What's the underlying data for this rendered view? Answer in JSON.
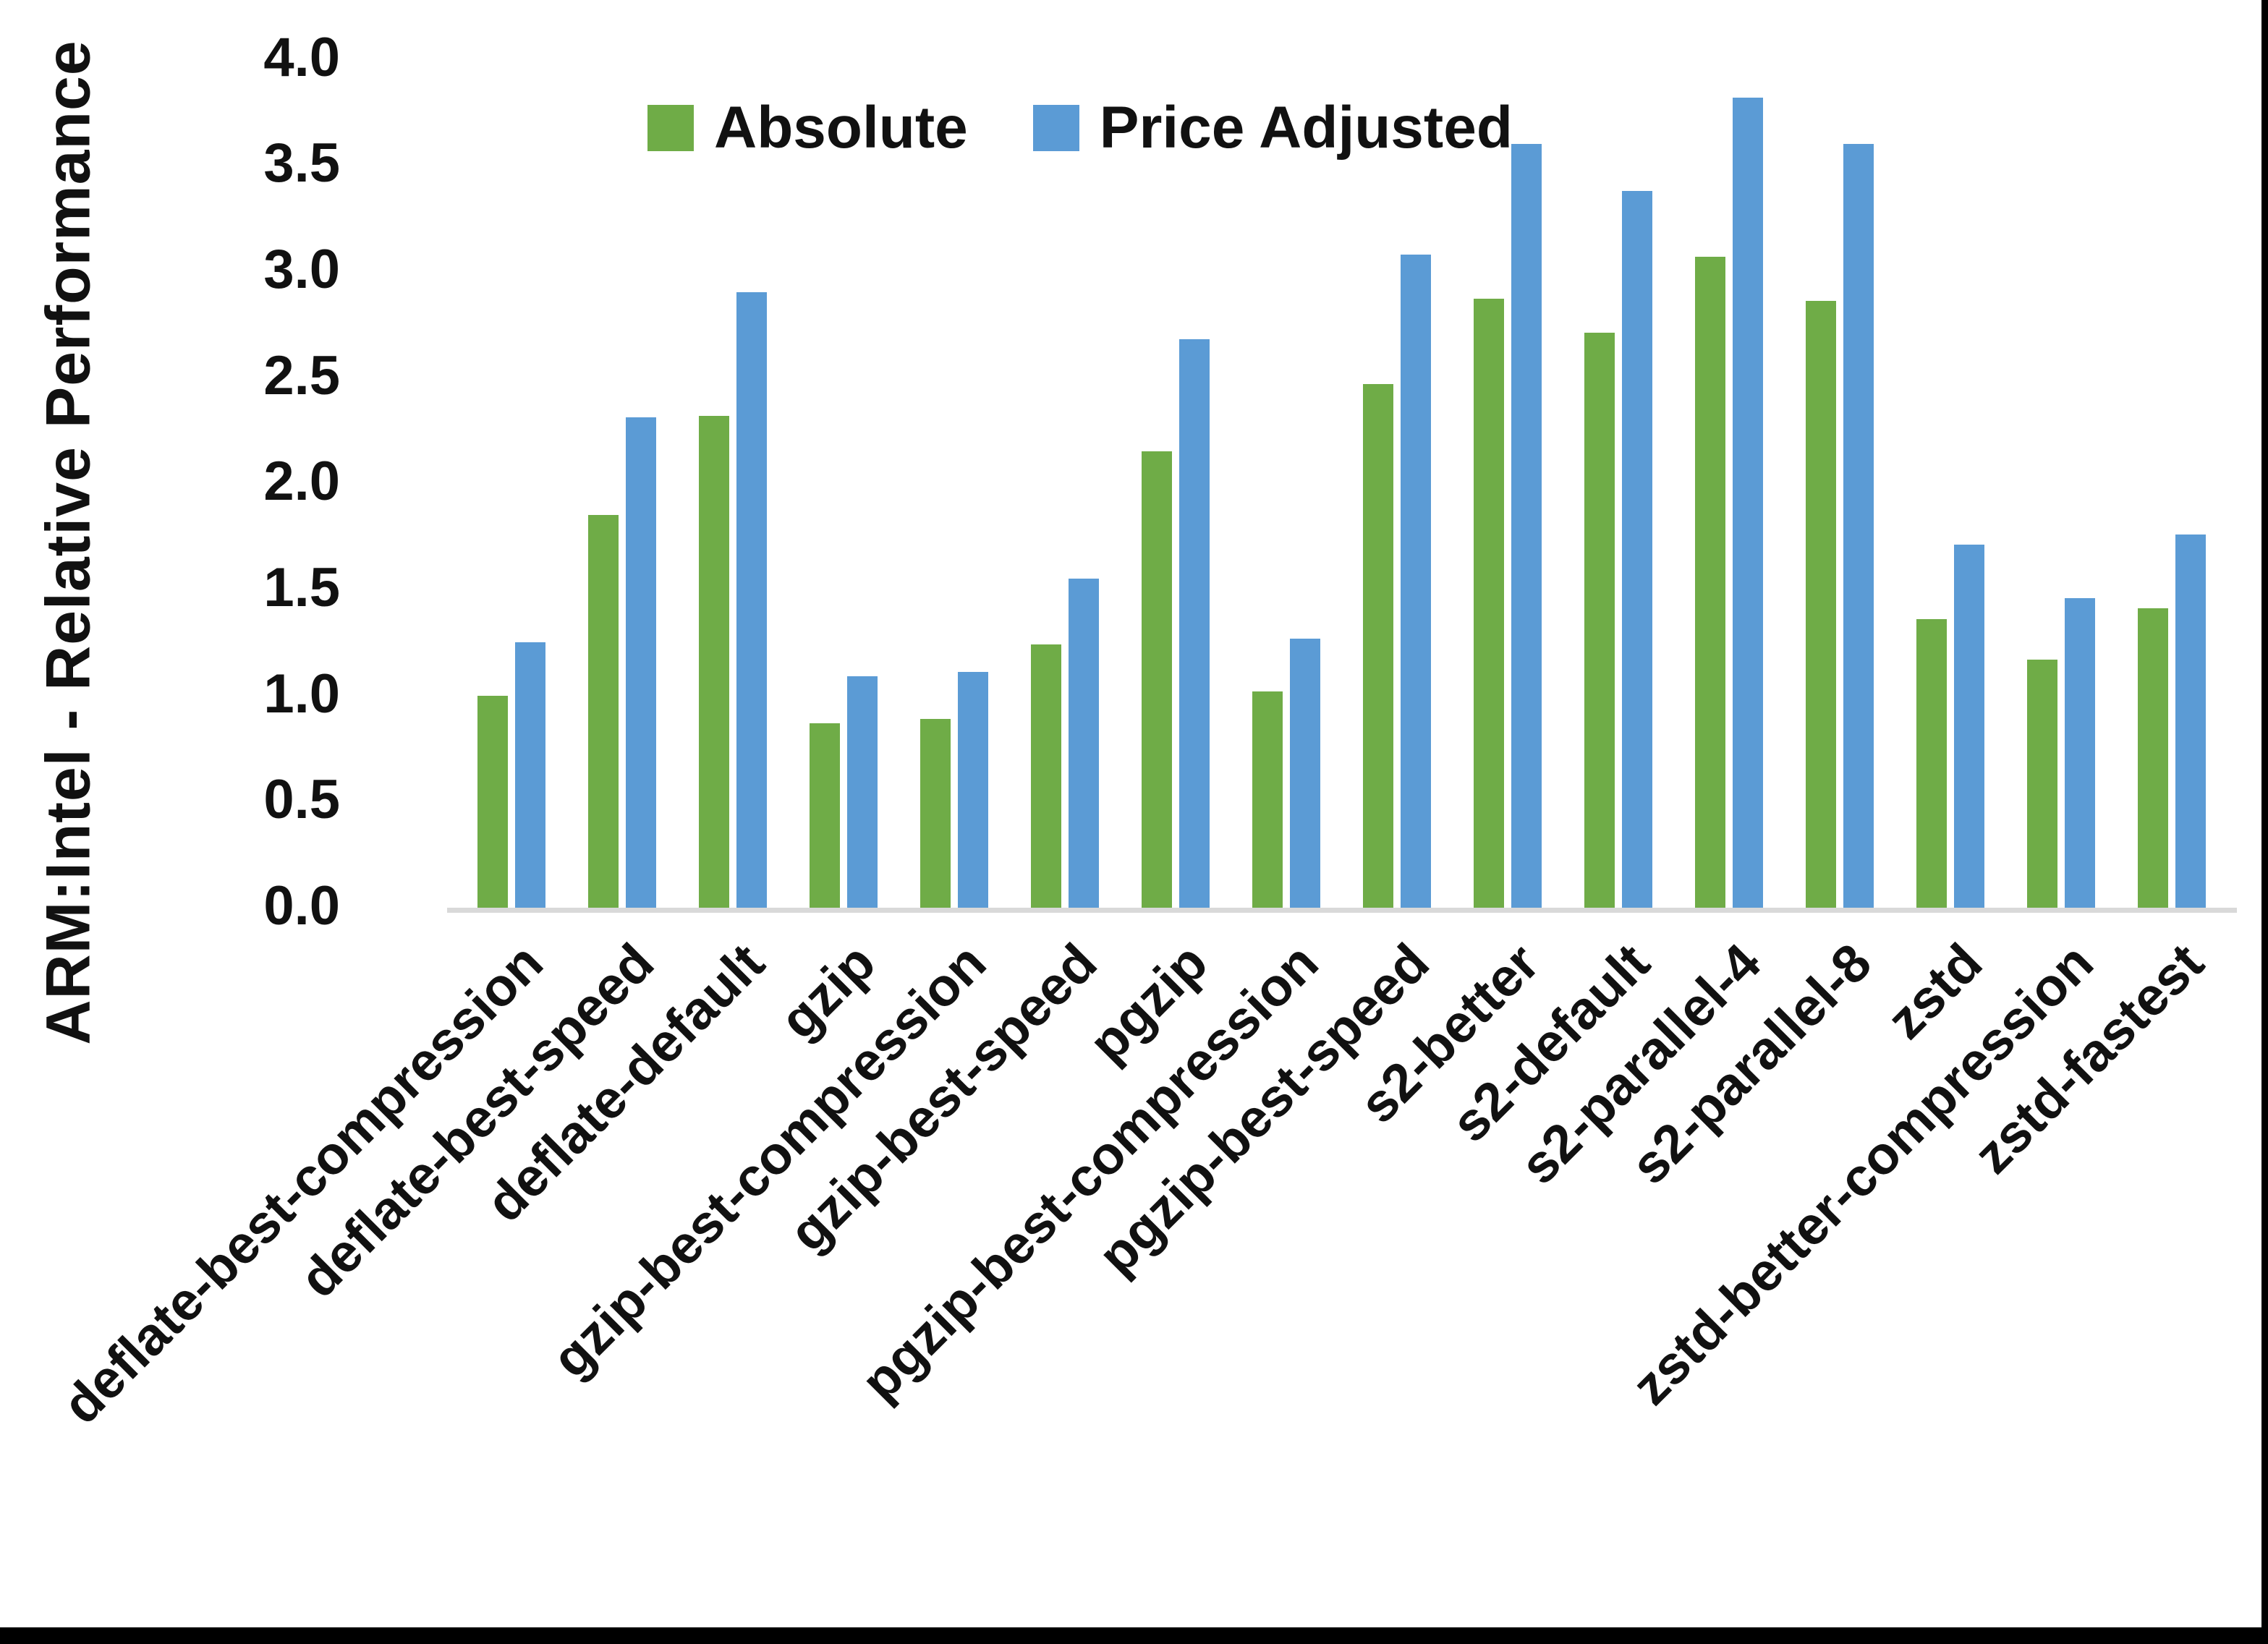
{
  "page": {
    "background": "#ffffff",
    "border_color": "#000000"
  },
  "chart_data": {
    "type": "bar",
    "title": "",
    "xlabel": "",
    "ylabel": "ARM:Intel - Relative Performance",
    "ylim": [
      0.0,
      4.0
    ],
    "ytick_step": 0.5,
    "yticks": [
      "0.0",
      "0.5",
      "1.0",
      "1.5",
      "2.0",
      "2.5",
      "3.0",
      "3.5",
      "4.0"
    ],
    "grid": false,
    "legend_position": "top-center",
    "axis_line_color": "#d9d9d9",
    "text_color": "#111111",
    "categories": [
      "deflate-best-compression",
      "deflate-best-speed",
      "deflate-default",
      "gzip",
      "gzip-best-compression",
      "gzip-best-speed",
      "pgzip",
      "pgzip-best-compression",
      "pgzip-best-speed",
      "s2-better",
      "s2-default",
      "s2-parallel-4",
      "s2-parallel-8",
      "zstd",
      "zstd-better-compression",
      "zstd-fastest"
    ],
    "series": [
      {
        "name": "Absolute",
        "color": "#6fac47",
        "values": [
          1.0,
          1.85,
          2.32,
          0.87,
          0.89,
          1.24,
          2.15,
          1.02,
          2.47,
          2.87,
          2.71,
          3.07,
          2.86,
          1.36,
          1.17,
          1.41
        ]
      },
      {
        "name": "Price Adjusted",
        "color": "#5b9bd5",
        "values": [
          1.25,
          2.31,
          2.9,
          1.09,
          1.11,
          1.55,
          2.68,
          1.27,
          3.08,
          3.6,
          3.38,
          3.82,
          3.6,
          1.71,
          1.46,
          1.76
        ]
      }
    ]
  },
  "legend": {
    "items": [
      {
        "label": "Absolute",
        "color": "#6fac47"
      },
      {
        "label": "Price Adjusted",
        "color": "#5b9bd5"
      }
    ]
  }
}
